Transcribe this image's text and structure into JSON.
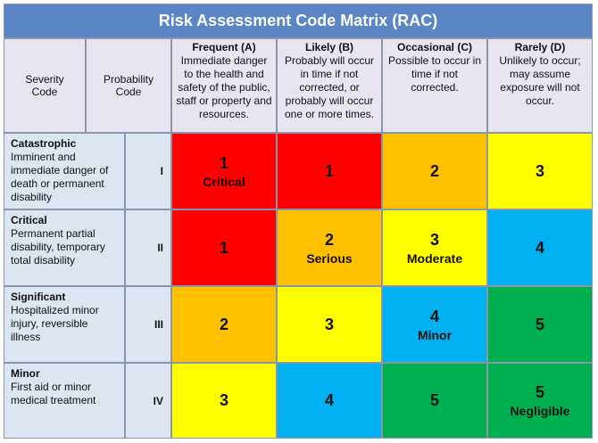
{
  "title": "Risk Assessment Code Matrix (RAC)",
  "header": {
    "severity": "Severity Code",
    "probability": "Probability Code",
    "columns": [
      {
        "name": "Frequent (A)",
        "description": "Immediate danger to the health and safety of the public, staff or property and resources."
      },
      {
        "name": "Likely (B)",
        "description": "Probably will occur in time if not corrected, or probably will occur one or more times."
      },
      {
        "name": "Occasional (C)",
        "description": "Possible to occur in time if not corrected."
      },
      {
        "name": "Rarely (D)",
        "description": "Unlikely to occur; may assume exposure will not occur."
      }
    ]
  },
  "rows": [
    {
      "name": "Catastrophic",
      "description": "Imminent and immediate danger of death or permanent disability",
      "code": "I",
      "cells": [
        {
          "value": 1,
          "label": "Critical",
          "color": "#ff0000"
        },
        {
          "value": 1,
          "color": "#ff0000"
        },
        {
          "value": 2,
          "color": "#ffc000"
        },
        {
          "value": 3,
          "color": "#ffff00"
        }
      ]
    },
    {
      "name": "Critical",
      "description": "Permanent partial disability, temporary total disability",
      "code": "II",
      "cells": [
        {
          "value": 1,
          "color": "#ff0000"
        },
        {
          "value": 2,
          "label": "Serious",
          "color": "#ffc000"
        },
        {
          "value": 3,
          "label": "Moderate",
          "color": "#ffff00"
        },
        {
          "value": 4,
          "color": "#00b0f0"
        }
      ]
    },
    {
      "name": "Significant",
      "description": "Hospitalized minor injury, reversible illness",
      "code": "III",
      "cells": [
        {
          "value": 2,
          "color": "#ffc000"
        },
        {
          "value": 3,
          "color": "#ffff00"
        },
        {
          "value": 4,
          "label": "Minor",
          "color": "#00b0f0"
        },
        {
          "value": 5,
          "color": "#00b050"
        }
      ]
    },
    {
      "name": "Minor",
      "description": "First aid or minor medical treatment",
      "code": "IV",
      "cells": [
        {
          "value": 3,
          "color": "#ffff00"
        },
        {
          "value": 4,
          "color": "#00b0f0"
        },
        {
          "value": 5,
          "color": "#00b050"
        },
        {
          "value": 5,
          "label": "Negligible",
          "color": "#00b050"
        }
      ]
    }
  ]
}
